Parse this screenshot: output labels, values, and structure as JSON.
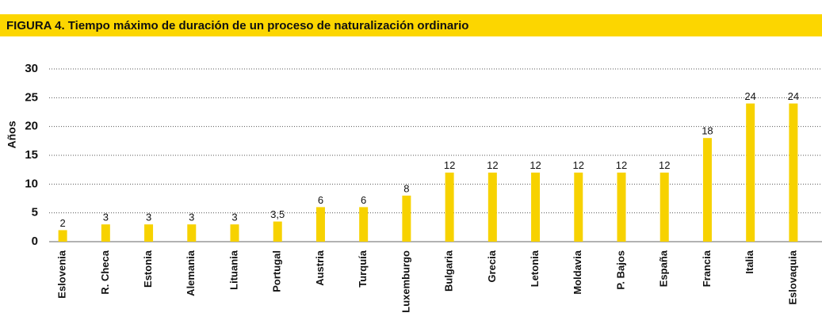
{
  "chart_data": {
    "type": "bar",
    "title": "FIGURA 4. Tiempo máximo de duración de un proceso de naturalización ordinario",
    "y_label": "Años",
    "categories": [
      "Eslovenia",
      "R. Checa",
      "Estonia",
      "Alemania",
      "Lituania",
      "Portugal",
      "Austria",
      "Turquía",
      "Luxemburgo",
      "Bulgaria",
      "Grecia",
      "Letonia",
      "Moldavia",
      "P. Bajos",
      "España",
      "Francia",
      "Italia",
      "Eslovaquia"
    ],
    "values": [
      2,
      3,
      3,
      3,
      3,
      3.5,
      6,
      6,
      8,
      12,
      12,
      12,
      12,
      12,
      12,
      18,
      24,
      24
    ],
    "value_labels": [
      "2",
      "3",
      "3",
      "3",
      "3",
      "3,5",
      "6",
      "6",
      "8",
      "12",
      "12",
      "12",
      "12",
      "12",
      "12",
      "18",
      "24",
      "24"
    ],
    "color": "#f7d200",
    "ylim": [
      0,
      30
    ],
    "yticks": [
      0,
      5,
      10,
      15,
      20,
      25,
      30
    ],
    "grid": true
  }
}
